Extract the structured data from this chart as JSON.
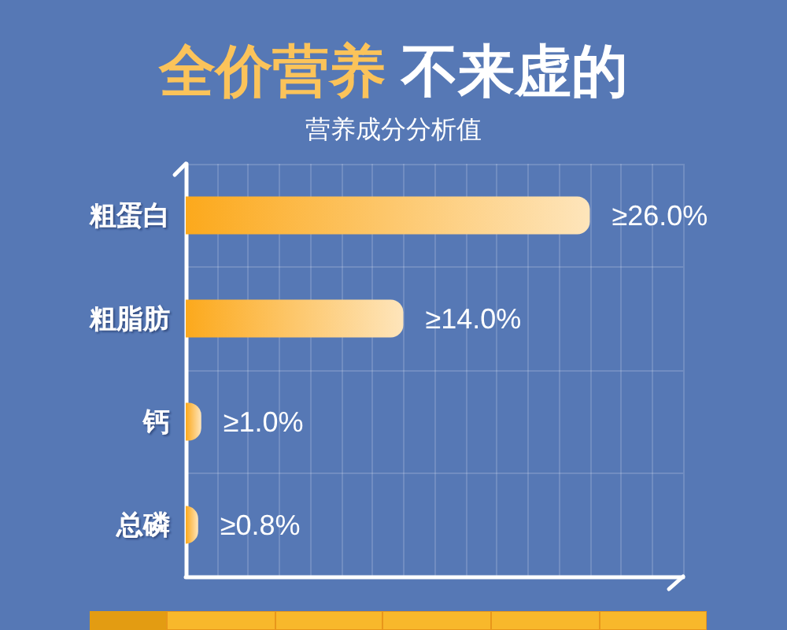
{
  "chart_data": {
    "type": "bar",
    "title": "全价营养 不来虚的",
    "subtitle": "营养成分分析值",
    "orientation": "horizontal",
    "categories": [
      "粗蛋白",
      "粗脂肪",
      "钙",
      "总磷"
    ],
    "values": [
      26,
      14,
      1,
      0.8
    ],
    "value_labels": [
      "≥26.0%",
      "≥14.0%",
      "≥1.0%",
      "≥0.8%"
    ],
    "color": "#fca91c",
    "xlim": [
      0,
      32
    ],
    "xticks": [
      {
        "value": 0,
        "label": null
      },
      {
        "value": 2,
        "label": null
      },
      {
        "value": 4,
        "label": null
      },
      {
        "value": 6,
        "label": null
      },
      {
        "value": 8,
        "label": null
      },
      {
        "value": 10,
        "label": null
      },
      {
        "value": 12,
        "label": null
      },
      {
        "value": 14,
        "label": null
      },
      {
        "value": 16,
        "label": null
      },
      {
        "value": 18,
        "label": null
      },
      {
        "value": 20,
        "label": null
      },
      {
        "value": 22,
        "label": null
      },
      {
        "value": 24,
        "label": null
      },
      {
        "value": 26,
        "label": null
      },
      {
        "value": 28,
        "label": null
      },
      {
        "value": 30,
        "label": null
      },
      {
        "value": 32,
        "label": null
      }
    ],
    "grid": true,
    "tick_labels": "y"
  }
}
